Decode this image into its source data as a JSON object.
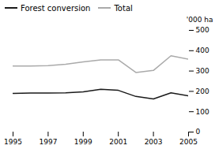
{
  "chart_data": {
    "type": "line",
    "x": [
      1995,
      1996,
      1997,
      1998,
      1999,
      2000,
      2001,
      2002,
      2003,
      2004,
      2005
    ],
    "series": [
      {
        "name": "Forest conversion",
        "color": "#1a1a1a",
        "values": [
          190,
          192,
          192,
          193,
          198,
          210,
          205,
          175,
          163,
          193,
          178
        ]
      },
      {
        "name": "Total",
        "color": "#aaaaaa",
        "values": [
          325,
          325,
          327,
          333,
          345,
          355,
          355,
          293,
          303,
          375,
          358
        ]
      }
    ],
    "xlim": [
      1995,
      2005
    ],
    "xticks": [
      1995,
      1997,
      1999,
      2001,
      2003,
      2005
    ],
    "ylim": [
      0,
      500
    ],
    "yticks": [
      0,
      100,
      200,
      300,
      400,
      500
    ],
    "ylabel": "'000 ha",
    "legend": "upper left",
    "grid": false
  }
}
